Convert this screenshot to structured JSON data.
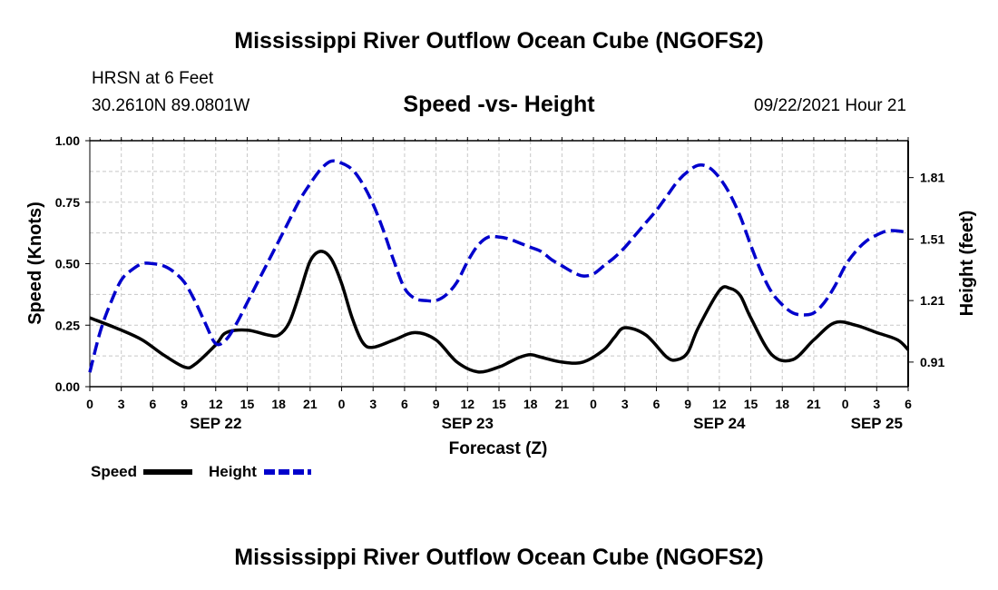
{
  "header": {
    "title": "Mississippi River Outflow Ocean Cube (NGOFS2)",
    "station": "HRSN at 6 Feet",
    "coords": "30.2610N  89.0801W",
    "subtitle": "Speed -vs- Height",
    "datetime": "09/22/2021 Hour 21"
  },
  "footer": {
    "title": "Mississippi River Outflow Ocean Cube (NGOFS2)"
  },
  "chart_data": {
    "type": "line",
    "title": "Speed -vs- Height",
    "xlabel": "Forecast (Z)",
    "ylabel": "Speed (Knots)",
    "y2label": "Height (feet)",
    "xlim": [
      0,
      78
    ],
    "ylim": [
      0,
      1.0
    ],
    "y2lim": [
      0.79,
      1.99
    ],
    "grid": true,
    "legend_position": "bottom-left",
    "x_ticks": [
      0,
      3,
      6,
      9,
      12,
      15,
      18,
      21,
      24,
      27,
      30,
      33,
      36,
      39,
      42,
      45,
      48,
      51,
      54,
      57,
      60,
      63,
      66,
      69,
      72,
      75,
      78
    ],
    "x_tick_labels": [
      "0",
      "3",
      "6",
      "9",
      "12",
      "15",
      "18",
      "21",
      "0",
      "3",
      "6",
      "9",
      "12",
      "15",
      "18",
      "21",
      "0",
      "3",
      "6",
      "9",
      "12",
      "15",
      "18",
      "21",
      "0",
      "3",
      "6"
    ],
    "day_labels": [
      {
        "label": "SEP 22",
        "x": 12
      },
      {
        "label": "SEP 23",
        "x": 36
      },
      {
        "label": "SEP 24",
        "x": 60
      },
      {
        "label": "SEP 25",
        "x": 75
      }
    ],
    "y_ticks": [
      0,
      0.25,
      0.5,
      0.75,
      1.0
    ],
    "y_tick_labels": [
      "0.00",
      "0.25",
      "0.50",
      "0.75",
      "1.00"
    ],
    "y2_ticks": [
      0.91,
      1.21,
      1.51,
      1.81
    ],
    "y2_tick_labels": [
      "0.91",
      "1.21",
      "1.51",
      "1.81"
    ],
    "series": [
      {
        "name": "Speed",
        "axis": "left",
        "color": "#000000",
        "style": "solid",
        "x": [
          0,
          3,
          5,
          7,
          9,
          10,
          12,
          13,
          15,
          17,
          18,
          19,
          20,
          21,
          22,
          23,
          24,
          25,
          26,
          27,
          29,
          31,
          33,
          35,
          37,
          39,
          40,
          41,
          42,
          43,
          45,
          47,
          49,
          50,
          51,
          53,
          55,
          56,
          57,
          58,
          60,
          61,
          62,
          63,
          65,
          67,
          69,
          71,
          73,
          75,
          77,
          78
        ],
        "y": [
          0.28,
          0.23,
          0.19,
          0.13,
          0.08,
          0.09,
          0.17,
          0.22,
          0.23,
          0.21,
          0.21,
          0.26,
          0.38,
          0.51,
          0.55,
          0.52,
          0.42,
          0.28,
          0.18,
          0.16,
          0.19,
          0.22,
          0.19,
          0.1,
          0.06,
          0.08,
          0.1,
          0.12,
          0.13,
          0.12,
          0.1,
          0.1,
          0.15,
          0.2,
          0.24,
          0.21,
          0.12,
          0.11,
          0.14,
          0.24,
          0.39,
          0.4,
          0.37,
          0.28,
          0.13,
          0.11,
          0.19,
          0.26,
          0.25,
          0.22,
          0.19,
          0.15
        ]
      },
      {
        "name": "Height",
        "axis": "right",
        "color": "#0000cc",
        "style": "dashed",
        "x": [
          0,
          1,
          2,
          3,
          4,
          5,
          6,
          7,
          8,
          9,
          10,
          11,
          12,
          13,
          14,
          15,
          16,
          17,
          18,
          19,
          20,
          21,
          22,
          23,
          24,
          25,
          26,
          27,
          28,
          29,
          30,
          31,
          32,
          33,
          34,
          35,
          36,
          37,
          38,
          39,
          40,
          41,
          42,
          43,
          44,
          45,
          46,
          47,
          48,
          49,
          50,
          51,
          52,
          53,
          54,
          55,
          56,
          57,
          58,
          59,
          60,
          61,
          62,
          63,
          64,
          65,
          66,
          67,
          68,
          69,
          70,
          71,
          72,
          73,
          74,
          75,
          76,
          77,
          78
        ],
        "y": [
          0.86,
          1.06,
          1.2,
          1.31,
          1.36,
          1.39,
          1.39,
          1.38,
          1.35,
          1.3,
          1.21,
          1.1,
          1.0,
          1.02,
          1.1,
          1.2,
          1.3,
          1.4,
          1.5,
          1.6,
          1.7,
          1.78,
          1.85,
          1.89,
          1.88,
          1.85,
          1.78,
          1.68,
          1.55,
          1.4,
          1.27,
          1.22,
          1.21,
          1.21,
          1.24,
          1.3,
          1.4,
          1.48,
          1.52,
          1.52,
          1.51,
          1.49,
          1.47,
          1.45,
          1.41,
          1.38,
          1.35,
          1.33,
          1.34,
          1.38,
          1.42,
          1.47,
          1.53,
          1.59,
          1.65,
          1.72,
          1.79,
          1.84,
          1.87,
          1.86,
          1.81,
          1.73,
          1.62,
          1.48,
          1.35,
          1.25,
          1.19,
          1.15,
          1.14,
          1.15,
          1.2,
          1.28,
          1.38,
          1.45,
          1.5,
          1.53,
          1.55,
          1.55,
          1.54
        ]
      }
    ]
  }
}
